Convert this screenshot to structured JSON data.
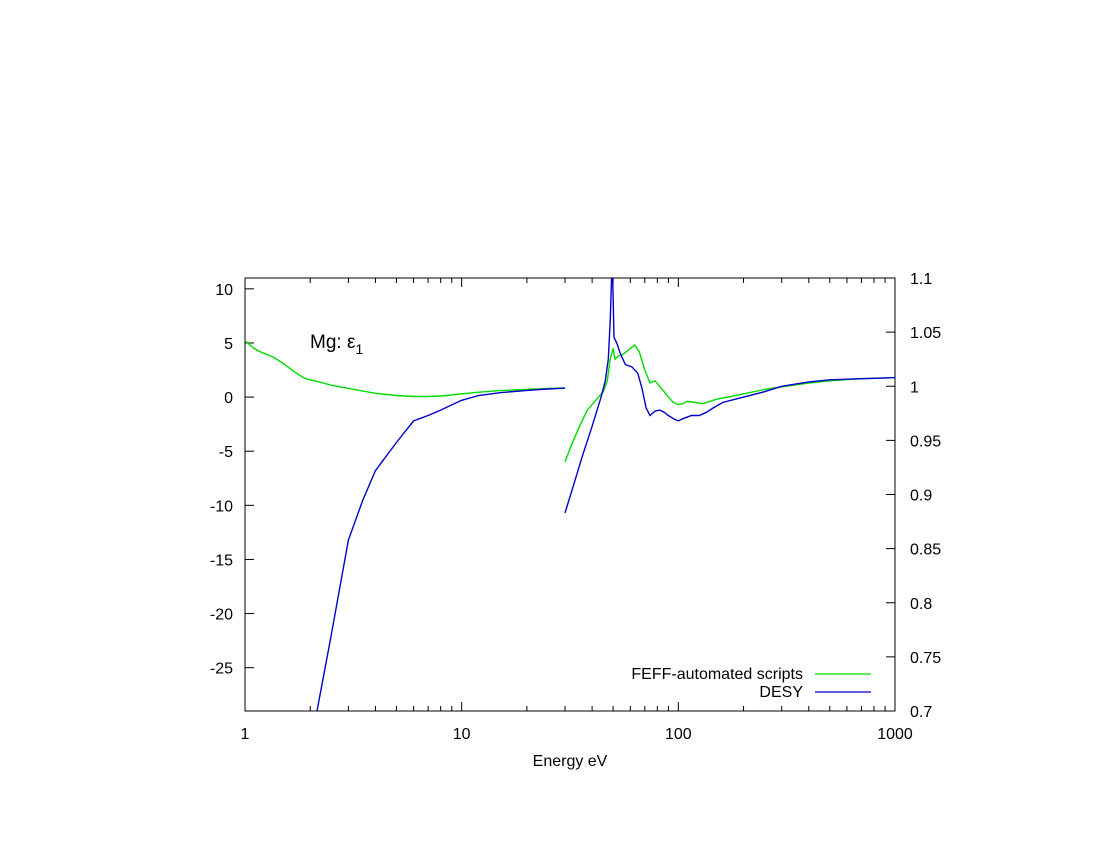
{
  "chart_data": {
    "type": "line",
    "annotation": {
      "prefix": "Mg: ",
      "symbol": "ε",
      "subscript": "1"
    },
    "xlabel": "Energy eV",
    "x_scale": "log",
    "xlim": [
      1,
      1000
    ],
    "x_ticks": [
      1,
      10,
      100,
      1000
    ],
    "x_tick_labels": [
      "1",
      "10",
      "100",
      "1000"
    ],
    "ylim_left": [
      -29,
      11
    ],
    "y_left_ticks": [
      10,
      5,
      0,
      -5,
      -10,
      -15,
      -20,
      -25
    ],
    "y_left_tick_labels": [
      "10",
      "5",
      "0",
      "-5",
      "-10",
      "-15",
      "-20",
      "-25"
    ],
    "ylim_right": [
      0.7,
      1.1
    ],
    "y_right_ticks": [
      1.1,
      1.05,
      1,
      0.95,
      0.9,
      0.85,
      0.8,
      0.75,
      0.7
    ],
    "y_right_tick_labels": [
      "1.1",
      "1.05",
      "1",
      "0.95",
      "0.9",
      "0.85",
      "0.8",
      "0.75",
      "0.7"
    ],
    "grid": false,
    "legend_position": "bottom-right",
    "series": [
      {
        "name": "FEFF-automated scripts",
        "color": "#00dd00",
        "segments": [
          {
            "axis": "left",
            "points": [
              [
                1,
                5.2
              ],
              [
                1.1,
                4.5
              ],
              [
                1.2,
                4.1
              ],
              [
                1.35,
                3.7
              ],
              [
                1.5,
                3.1
              ],
              [
                1.7,
                2.3
              ],
              [
                1.9,
                1.7
              ],
              [
                2.2,
                1.4
              ],
              [
                2.5,
                1.1
              ],
              [
                3,
                0.8
              ],
              [
                3.5,
                0.55
              ],
              [
                4,
                0.35
              ],
              [
                5,
                0.15
              ],
              [
                6,
                0.05
              ],
              [
                7,
                0.05
              ],
              [
                8,
                0.1
              ],
              [
                9,
                0.2
              ],
              [
                10,
                0.3
              ],
              [
                12,
                0.45
              ],
              [
                15,
                0.6
              ],
              [
                20,
                0.72
              ],
              [
                25,
                0.8
              ],
              [
                30,
                0.85
              ]
            ]
          },
          {
            "axis": "right",
            "points": [
              [
                30,
                0.93
              ],
              [
                32,
                0.945
              ],
              [
                35,
                0.963
              ],
              [
                38,
                0.978
              ],
              [
                42,
                0.988
              ],
              [
                45,
                0.995
              ],
              [
                47,
                1.005
              ],
              [
                48.5,
                1.025
              ],
              [
                50,
                1.035
              ],
              [
                51,
                1.025
              ],
              [
                53,
                1.028
              ],
              [
                56,
                1.03
              ],
              [
                60,
                1.035
              ],
              [
                63,
                1.038
              ],
              [
                66,
                1.032
              ],
              [
                70,
                1.015
              ],
              [
                74,
                1.003
              ],
              [
                78,
                1.005
              ],
              [
                82,
                1.0
              ],
              [
                86,
                0.995
              ],
              [
                90,
                0.99
              ],
              [
                95,
                0.985
              ],
              [
                100,
                0.983
              ],
              [
                105,
                0.984
              ],
              [
                110,
                0.986
              ],
              [
                120,
                0.985
              ],
              [
                130,
                0.984
              ],
              [
                140,
                0.986
              ],
              [
                150,
                0.988
              ],
              [
                170,
                0.99
              ],
              [
                200,
                0.993
              ],
              [
                250,
                0.997
              ],
              [
                300,
                0.9995
              ],
              [
                400,
                1.003
              ],
              [
                500,
                1.005
              ],
              [
                700,
                1.007
              ],
              [
                1000,
                1.008
              ]
            ]
          }
        ]
      },
      {
        "name": "DESY",
        "color": "#0000cc",
        "segments": [
          {
            "axis": "left",
            "points": [
              [
                2.15,
                -29
              ],
              [
                2.5,
                -22
              ],
              [
                3,
                -13.2
              ],
              [
                3.5,
                -9.5
              ],
              [
                4,
                -6.8
              ],
              [
                5,
                -4.2
              ],
              [
                6,
                -2.2
              ],
              [
                7,
                -1.7
              ],
              [
                8,
                -1.2
              ],
              [
                10,
                -0.3
              ],
              [
                12,
                0.15
              ],
              [
                15,
                0.4
              ],
              [
                20,
                0.62
              ],
              [
                25,
                0.75
              ],
              [
                30,
                0.82
              ]
            ]
          },
          {
            "axis": "right",
            "points": [
              [
                30,
                0.883
              ],
              [
                33,
                0.91
              ],
              [
                36,
                0.935
              ],
              [
                40,
                0.963
              ],
              [
                44,
                0.99
              ],
              [
                46,
                1.005
              ],
              [
                47.5,
                1.025
              ],
              [
                48.5,
                1.06
              ],
              [
                49.2,
                1.1
              ],
              [
                49.8,
                1.1
              ],
              [
                50.5,
                1.045
              ],
              [
                52,
                1.04
              ],
              [
                54,
                1.03
              ],
              [
                57,
                1.02
              ],
              [
                61,
                1.018
              ],
              [
                65,
                1.012
              ],
              [
                68,
                0.998
              ],
              [
                71,
                0.98
              ],
              [
                74,
                0.973
              ],
              [
                78,
                0.977
              ],
              [
                82,
                0.978
              ],
              [
                86,
                0.976
              ],
              [
                90,
                0.973
              ],
              [
                95,
                0.97
              ],
              [
                100,
                0.968
              ],
              [
                105,
                0.97
              ],
              [
                115,
                0.973
              ],
              [
                125,
                0.973
              ],
              [
                135,
                0.976
              ],
              [
                145,
                0.98
              ],
              [
                160,
                0.985
              ],
              [
                200,
                0.99
              ],
              [
                250,
                0.995
              ],
              [
                300,
                1.0
              ],
              [
                400,
                1.004
              ],
              [
                500,
                1.006
              ],
              [
                700,
                1.007
              ],
              [
                1000,
                1.008
              ]
            ]
          }
        ]
      }
    ]
  }
}
